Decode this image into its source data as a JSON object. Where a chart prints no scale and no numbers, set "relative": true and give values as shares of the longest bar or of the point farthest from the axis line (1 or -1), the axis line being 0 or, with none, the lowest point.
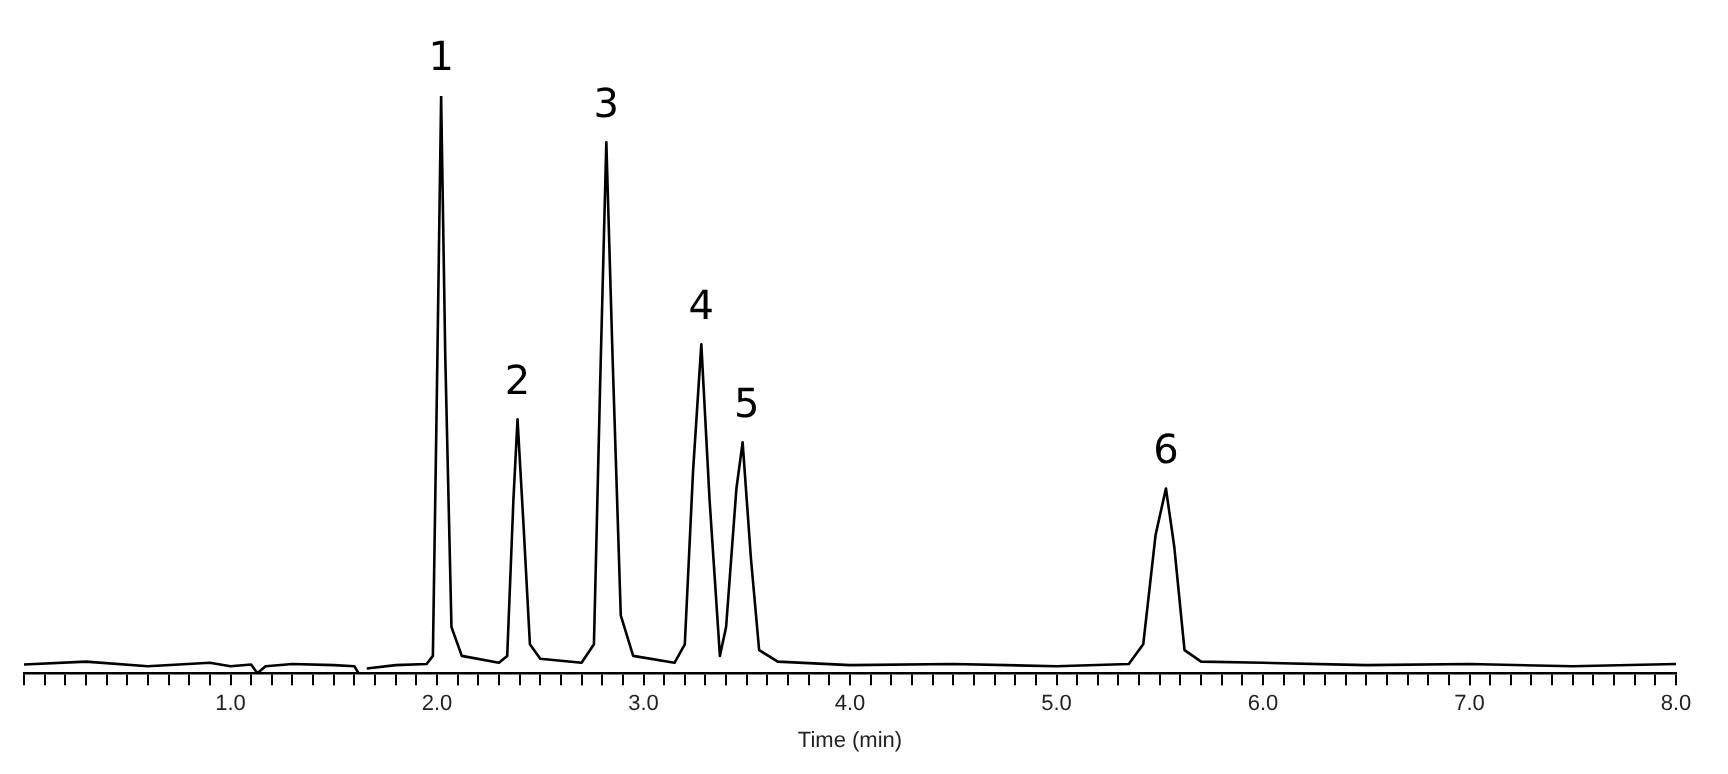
{
  "chart_data": {
    "type": "line",
    "relative": true,
    "xlabel": "Time (min)",
    "xlim": [
      0,
      8
    ],
    "xticks": [
      {
        "value": 0,
        "label": null
      },
      {
        "value": 0.1,
        "label": null
      },
      {
        "value": 0.2,
        "label": null
      },
      {
        "value": 0.3,
        "label": null
      },
      {
        "value": 0.4,
        "label": null
      },
      {
        "value": 0.5,
        "label": null
      },
      {
        "value": 0.6,
        "label": null
      },
      {
        "value": 0.7,
        "label": null
      },
      {
        "value": 0.8,
        "label": null
      },
      {
        "value": 0.9,
        "label": null
      },
      {
        "value": 1,
        "label": "1.0"
      },
      {
        "value": 1.1,
        "label": null
      },
      {
        "value": 1.2,
        "label": null
      },
      {
        "value": 1.3,
        "label": null
      },
      {
        "value": 1.4,
        "label": null
      },
      {
        "value": 1.5,
        "label": null
      },
      {
        "value": 1.6,
        "label": null
      },
      {
        "value": 1.7,
        "label": null
      },
      {
        "value": 1.8,
        "label": null
      },
      {
        "value": 1.9,
        "label": null
      },
      {
        "value": 2,
        "label": "2.0"
      },
      {
        "value": 2.1,
        "label": null
      },
      {
        "value": 2.2,
        "label": null
      },
      {
        "value": 2.3,
        "label": null
      },
      {
        "value": 2.4,
        "label": null
      },
      {
        "value": 2.5,
        "label": null
      },
      {
        "value": 2.6,
        "label": null
      },
      {
        "value": 2.7,
        "label": null
      },
      {
        "value": 2.8,
        "label": null
      },
      {
        "value": 2.9,
        "label": null
      },
      {
        "value": 3,
        "label": "3.0"
      },
      {
        "value": 3.1,
        "label": null
      },
      {
        "value": 3.2,
        "label": null
      },
      {
        "value": 3.3,
        "label": null
      },
      {
        "value": 3.4,
        "label": null
      },
      {
        "value": 3.5,
        "label": null
      },
      {
        "value": 3.6,
        "label": null
      },
      {
        "value": 3.7,
        "label": null
      },
      {
        "value": 3.8,
        "label": null
      },
      {
        "value": 3.9,
        "label": null
      },
      {
        "value": 4,
        "label": "4.0"
      },
      {
        "value": 4.1,
        "label": null
      },
      {
        "value": 4.2,
        "label": null
      },
      {
        "value": 4.3,
        "label": null
      },
      {
        "value": 4.4,
        "label": null
      },
      {
        "value": 4.5,
        "label": null
      },
      {
        "value": 4.6,
        "label": null
      },
      {
        "value": 4.7,
        "label": null
      },
      {
        "value": 4.8,
        "label": null
      },
      {
        "value": 4.9,
        "label": null
      },
      {
        "value": 5,
        "label": "5.0"
      },
      {
        "value": 5.1,
        "label": null
      },
      {
        "value": 5.2,
        "label": null
      },
      {
        "value": 5.3,
        "label": null
      },
      {
        "value": 5.4,
        "label": null
      },
      {
        "value": 5.5,
        "label": null
      },
      {
        "value": 5.6,
        "label": null
      },
      {
        "value": 5.7,
        "label": null
      },
      {
        "value": 5.8,
        "label": null
      },
      {
        "value": 5.9,
        "label": null
      },
      {
        "value": 6,
        "label": "6.0"
      },
      {
        "value": 6.1,
        "label": null
      },
      {
        "value": 6.2,
        "label": null
      },
      {
        "value": 6.3,
        "label": null
      },
      {
        "value": 6.4,
        "label": null
      },
      {
        "value": 6.5,
        "label": null
      },
      {
        "value": 6.6,
        "label": null
      },
      {
        "value": 6.7,
        "label": null
      },
      {
        "value": 6.8,
        "label": null
      },
      {
        "value": 6.9,
        "label": null
      },
      {
        "value": 7,
        "label": "7.0"
      },
      {
        "value": 7.1,
        "label": null
      },
      {
        "value": 7.2,
        "label": null
      },
      {
        "value": 7.3,
        "label": null
      },
      {
        "value": 7.4,
        "label": null
      },
      {
        "value": 7.5,
        "label": null
      },
      {
        "value": 7.6,
        "label": null
      },
      {
        "value": 7.7,
        "label": null
      },
      {
        "value": 7.8,
        "label": null
      },
      {
        "value": 7.9,
        "label": null
      },
      {
        "value": 8,
        "label": "8.0"
      }
    ],
    "grid": false,
    "legend": false,
    "marker": "none",
    "line_style": "solid",
    "series": [
      {
        "color": "#000000",
        "x": [
          0,
          0.3,
          0.6,
          0.9,
          1.0,
          1.1,
          1.13,
          1.17,
          1.3,
          1.5,
          1.6,
          1.62,
          1.64,
          1.66,
          1.8,
          1.95,
          1.98,
          2.0,
          2.02,
          2.04,
          2.07,
          2.12,
          2.3,
          2.34,
          2.37,
          2.39,
          2.42,
          2.45,
          2.5,
          2.7,
          2.76,
          2.79,
          2.82,
          2.85,
          2.89,
          2.95,
          3.15,
          3.2,
          3.24,
          3.28,
          3.32,
          3.37,
          3.4,
          3.45,
          3.48,
          3.52,
          3.56,
          3.65,
          4.0,
          4.5,
          5.0,
          5.35,
          5.42,
          5.48,
          5.53,
          5.57,
          5.62,
          5.7,
          6.0,
          6.5,
          7.0,
          7.5,
          8.0
        ],
        "values": [
          0.015,
          0.02,
          0.012,
          0.018,
          0.012,
          0.015,
          0.0,
          0.012,
          0.016,
          0.014,
          0.012,
          0.0,
          null,
          0.008,
          0.014,
          0.016,
          0.03,
          0.5,
          1.0,
          0.55,
          0.08,
          0.03,
          0.018,
          0.03,
          0.3,
          0.44,
          0.25,
          0.05,
          0.025,
          0.018,
          0.05,
          0.5,
          0.92,
          0.55,
          0.1,
          0.03,
          0.018,
          0.05,
          0.35,
          0.57,
          0.3,
          0.03,
          0.08,
          0.32,
          0.4,
          0.2,
          0.04,
          0.02,
          0.014,
          0.016,
          0.012,
          0.016,
          0.05,
          0.24,
          0.32,
          0.22,
          0.04,
          0.02,
          0.018,
          0.014,
          0.016,
          0.012,
          0.016
        ]
      }
    ],
    "annotations": [
      {
        "text": "1",
        "x": 2.02,
        "y": 1.0
      },
      {
        "text": "2",
        "x": 2.39,
        "y": 0.44
      },
      {
        "text": "3",
        "x": 2.82,
        "y": 0.92
      },
      {
        "text": "4",
        "x": 3.28,
        "y": 0.57
      },
      {
        "text": "5",
        "x": 3.5,
        "y": 0.4
      },
      {
        "text": "6",
        "x": 5.53,
        "y": 0.32
      }
    ]
  }
}
